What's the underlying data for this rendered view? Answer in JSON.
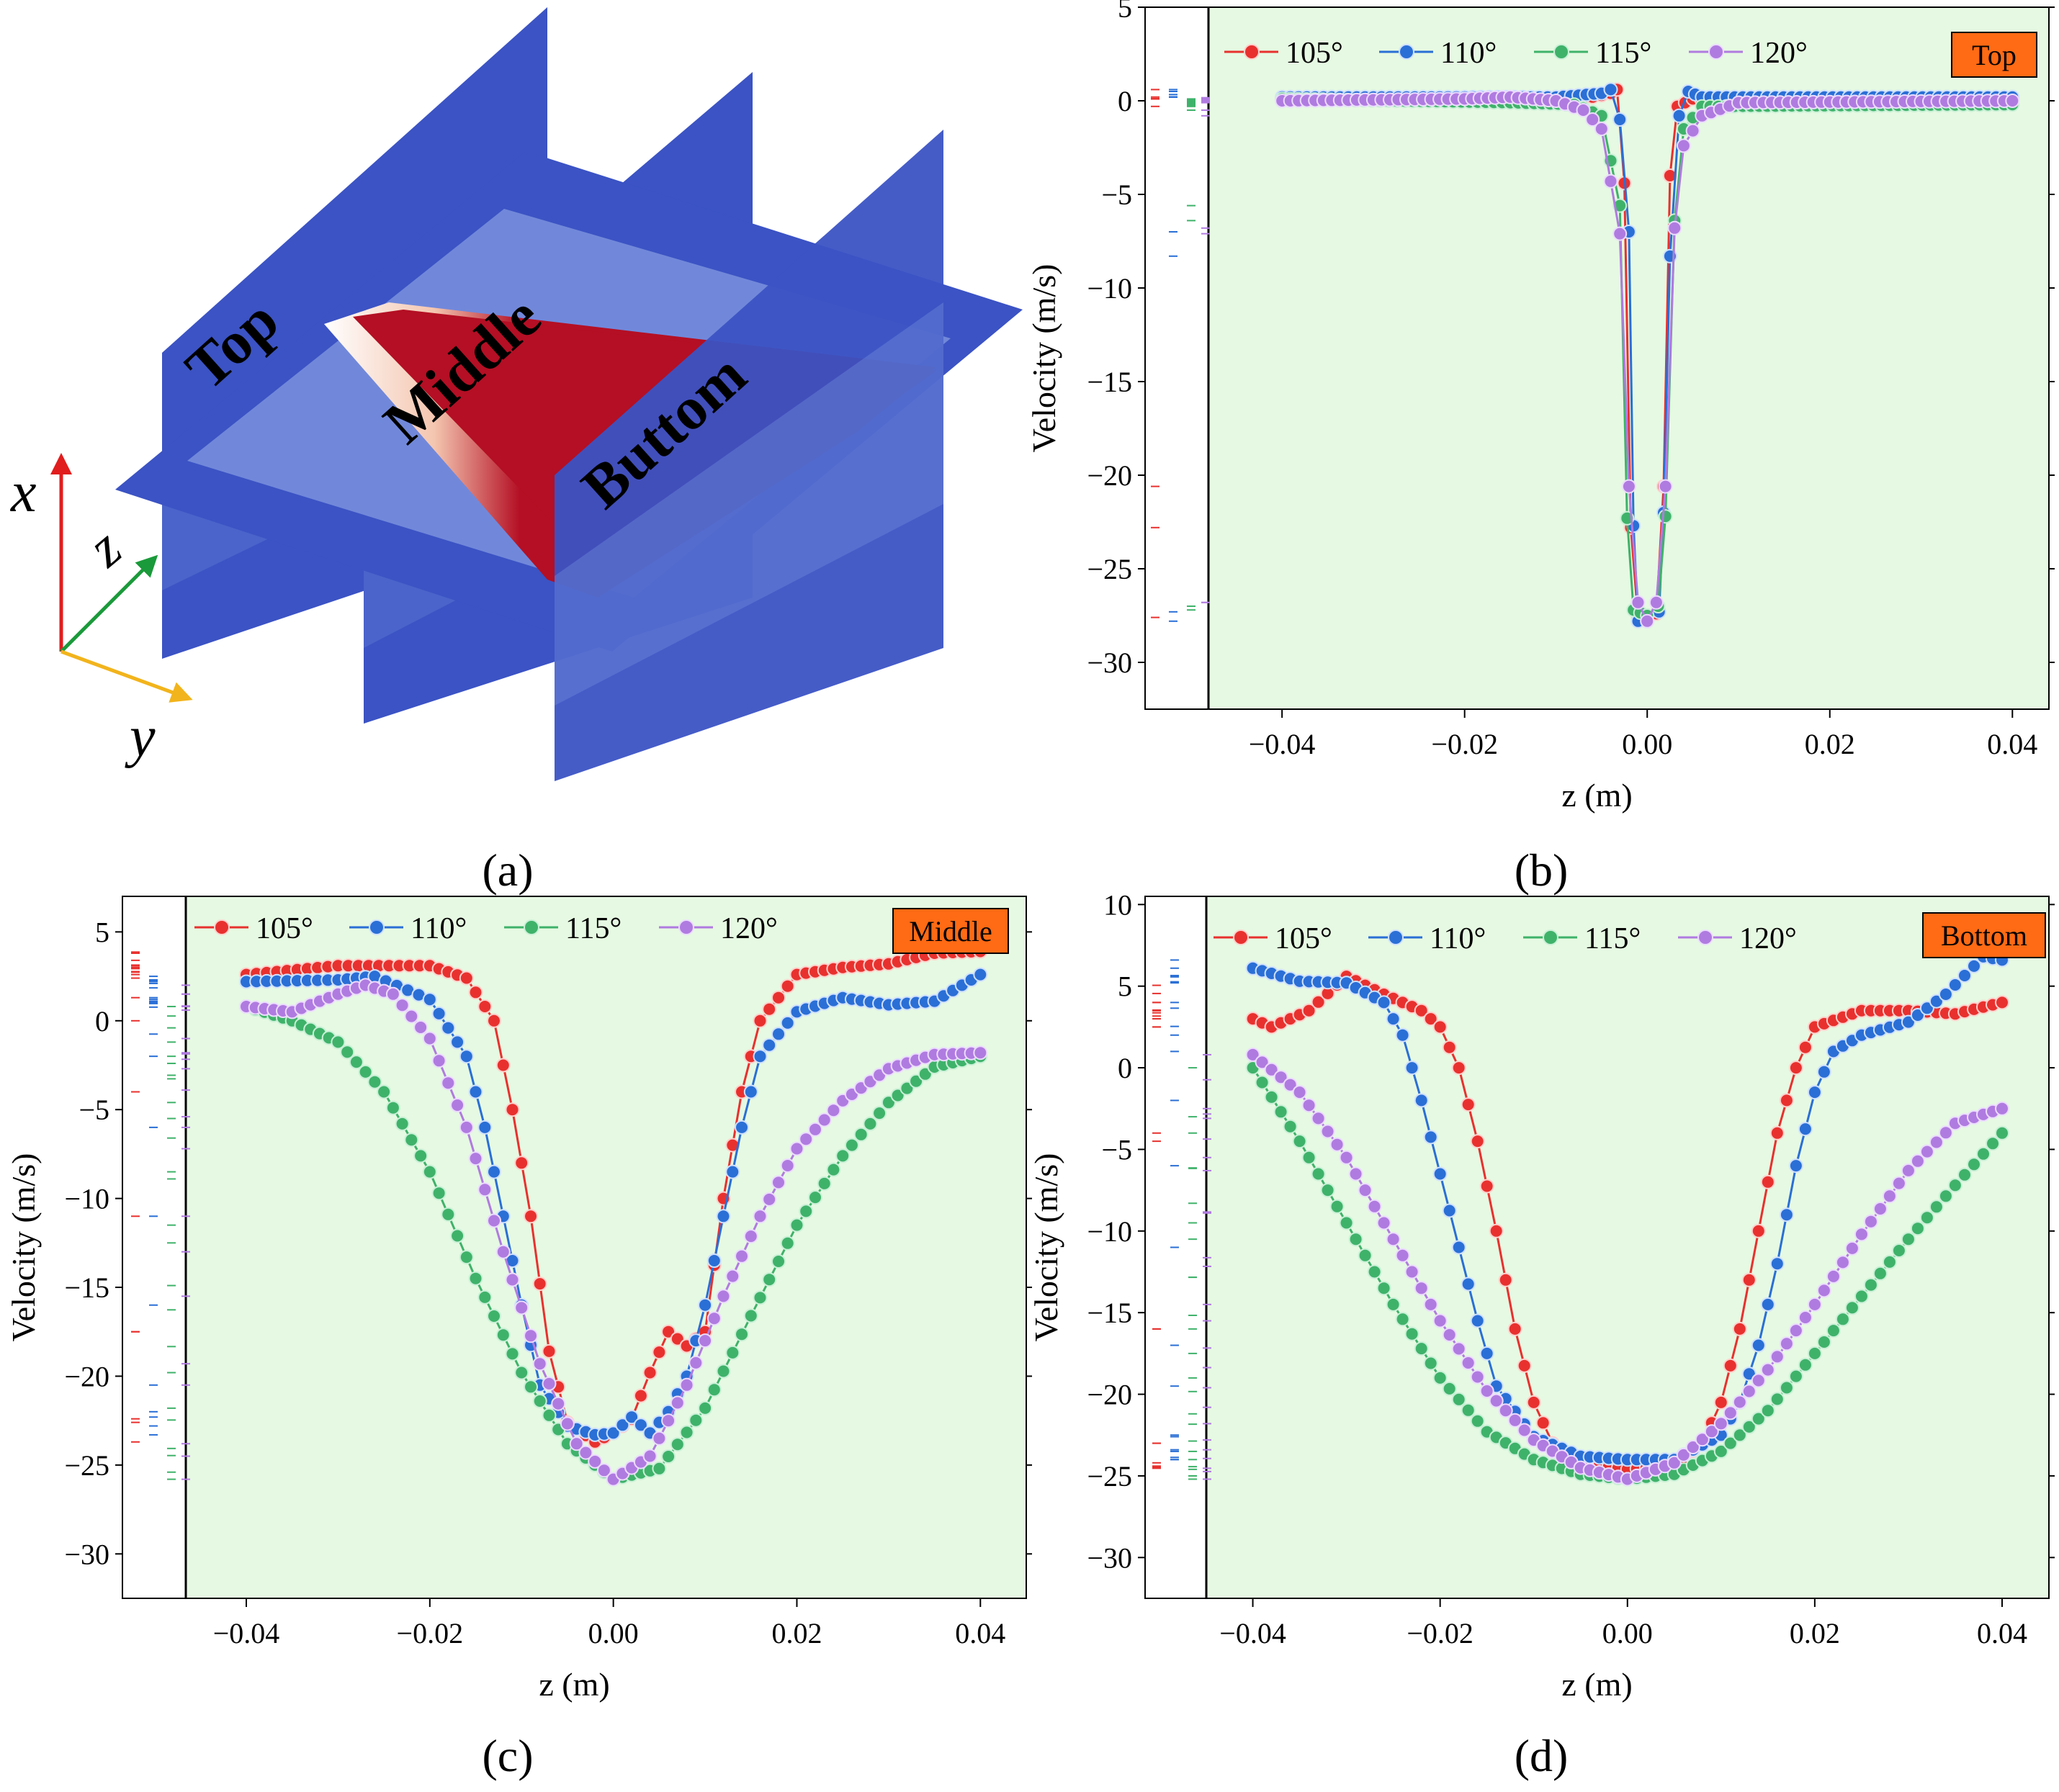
{
  "figure": {
    "panel_labels": [
      "(a)",
      "(b)",
      "(c)",
      "(d)"
    ],
    "scene": {
      "plane_labels": [
        "Top",
        "Middle",
        "Buttom"
      ],
      "axis_labels": [
        "x",
        "z",
        "y"
      ]
    },
    "colors": {
      "series_105": "#e8312e",
      "series_110": "#2a6fd6",
      "series_115": "#3fb26a",
      "series_120": "#b07be0",
      "plot_bg": "#e6f9e2",
      "tag_bg": "#ff6a14",
      "field_blue": "#3b53c4",
      "field_red": "#b40f24"
    }
  },
  "chart_data": [
    {
      "id": "b",
      "type": "line",
      "tag": "Top",
      "xlabel": "z (m)",
      "ylabel": "Velocity (m/s)",
      "xlim": [
        -0.055,
        0.044
      ],
      "ylim": [
        -32.5,
        5
      ],
      "xticks": [
        "-0.04",
        "-0.02",
        "0.00",
        "0.02",
        "0.04"
      ],
      "yticks": [
        "5",
        "0",
        "-5",
        "-10",
        "-15",
        "-20",
        "-25",
        "-30"
      ],
      "legend": [
        "105°",
        "110°",
        "115°",
        "120°"
      ],
      "series": [
        {
          "name": "105°",
          "points": [
            [
              -0.04,
              0.1
            ],
            [
              -0.01,
              0.1
            ],
            [
              -0.006,
              0.2
            ],
            [
              -0.004,
              0.4
            ],
            [
              -0.0033,
              0.6
            ],
            [
              -0.0025,
              -4.4
            ],
            [
              -0.0018,
              -22.8
            ],
            [
              -0.001,
              -27.6
            ],
            [
              0,
              -27.6
            ],
            [
              0.001,
              -27.4
            ],
            [
              0.0018,
              -20.6
            ],
            [
              0.0025,
              -4
            ],
            [
              0.0033,
              -0.3
            ],
            [
              0.005,
              0.1
            ],
            [
              0.04,
              0.1
            ]
          ]
        },
        {
          "name": "110°",
          "points": [
            [
              -0.04,
              0.2
            ],
            [
              -0.01,
              0.2
            ],
            [
              -0.005,
              0.4
            ],
            [
              -0.004,
              0.6
            ],
            [
              -0.003,
              -1
            ],
            [
              -0.002,
              -7
            ],
            [
              -0.0015,
              -22.7
            ],
            [
              -0.001,
              -27.8
            ],
            [
              0,
              -27.8
            ],
            [
              0.0013,
              -27.3
            ],
            [
              0.0018,
              -22
            ],
            [
              0.0025,
              -8.3
            ],
            [
              0.0035,
              -0.8
            ],
            [
              0.0045,
              0.5
            ],
            [
              0.006,
              0.2
            ],
            [
              0.04,
              0.2
            ]
          ]
        },
        {
          "name": "115°",
          "points": [
            [
              -0.04,
              0.1
            ],
            [
              -0.015,
              -0.1
            ],
            [
              -0.008,
              -0.2
            ],
            [
              -0.005,
              -0.8
            ],
            [
              -0.003,
              -5.6
            ],
            [
              -0.0022,
              -22.3
            ],
            [
              -0.0015,
              -27.2
            ],
            [
              0,
              -27.5
            ],
            [
              0.0012,
              -27
            ],
            [
              0.002,
              -22.2
            ],
            [
              0.003,
              -6.4
            ],
            [
              0.004,
              -1.5
            ],
            [
              0.006,
              -0.3
            ],
            [
              0.04,
              -0.2
            ]
          ]
        },
        {
          "name": "120°",
          "points": [
            [
              -0.04,
              0
            ],
            [
              -0.02,
              0.1
            ],
            [
              -0.015,
              0.2
            ],
            [
              -0.01,
              0
            ],
            [
              -0.007,
              -0.5
            ],
            [
              -0.005,
              -1.5
            ],
            [
              -0.003,
              -7.1
            ],
            [
              -0.002,
              -20.6
            ],
            [
              -0.001,
              -26.8
            ],
            [
              0,
              -27.8
            ],
            [
              0.001,
              -26.8
            ],
            [
              0.002,
              -20.6
            ],
            [
              0.003,
              -6.8
            ],
            [
              0.004,
              -2.4
            ],
            [
              0.006,
              -0.8
            ],
            [
              0.01,
              -0.1
            ],
            [
              0.04,
              0
            ]
          ]
        }
      ]
    },
    {
      "id": "c",
      "type": "line",
      "tag": "Middle",
      "xlabel": "z (m)",
      "ylabel": "Velocity (m/s)",
      "xlim": [
        -0.0535,
        0.045
      ],
      "ylim": [
        -32.5,
        7
      ],
      "xticks": [
        "-0.04",
        "-0.02",
        "0.00",
        "0.02",
        "0.04"
      ],
      "yticks": [
        "5",
        "0",
        "-5",
        "-10",
        "-15",
        "-20",
        "-25",
        "-30"
      ],
      "legend": [
        "105°",
        "110°",
        "115°",
        "120°"
      ],
      "series": [
        {
          "name": "105°",
          "points": [
            [
              -0.04,
              2.6
            ],
            [
              -0.03,
              3.1
            ],
            [
              -0.02,
              3.1
            ],
            [
              -0.016,
              2.4
            ],
            [
              -0.013,
              0
            ],
            [
              -0.011,
              -5
            ],
            [
              -0.009,
              -11
            ],
            [
              -0.007,
              -18.6
            ],
            [
              -0.005,
              -22.6
            ],
            [
              -0.002,
              -23.7
            ],
            [
              0,
              -23.2
            ],
            [
              0.002,
              -22.4
            ],
            [
              0.004,
              -19.8
            ],
            [
              0.006,
              -17.5
            ],
            [
              0.008,
              -18.3
            ],
            [
              0.01,
              -17.5
            ],
            [
              0.012,
              -10
            ],
            [
              0.014,
              -4
            ],
            [
              0.016,
              0
            ],
            [
              0.02,
              2.6
            ],
            [
              0.025,
              3
            ],
            [
              0.03,
              3.2
            ],
            [
              0.035,
              3.8
            ],
            [
              0.04,
              3.9
            ]
          ]
        },
        {
          "name": "110°",
          "points": [
            [
              -0.04,
              2.2
            ],
            [
              -0.03,
              2.3
            ],
            [
              -0.026,
              2.5
            ],
            [
              -0.02,
              1.2
            ],
            [
              -0.016,
              -2
            ],
            [
              -0.014,
              -6
            ],
            [
              -0.012,
              -11
            ],
            [
              -0.01,
              -16
            ],
            [
              -0.008,
              -20.5
            ],
            [
              -0.005,
              -22.8
            ],
            [
              -0.002,
              -23.3
            ],
            [
              0,
              -23.2
            ],
            [
              0.002,
              -22.3
            ],
            [
              0.004,
              -23.2
            ],
            [
              0.006,
              -22
            ],
            [
              0.008,
              -20
            ],
            [
              0.01,
              -16
            ],
            [
              0.012,
              -11
            ],
            [
              0.014,
              -6
            ],
            [
              0.016,
              -2
            ],
            [
              0.02,
              0.5
            ],
            [
              0.025,
              1.3
            ],
            [
              0.03,
              0.9
            ],
            [
              0.035,
              1.1
            ],
            [
              0.04,
              2.6
            ]
          ]
        },
        {
          "name": "115°",
          "points": [
            [
              -0.04,
              0.8
            ],
            [
              -0.035,
              0
            ],
            [
              -0.03,
              -1.2
            ],
            [
              -0.025,
              -4
            ],
            [
              -0.02,
              -8.5
            ],
            [
              -0.015,
              -14.5
            ],
            [
              -0.01,
              -19.8
            ],
            [
              -0.005,
              -23.8
            ],
            [
              0,
              -25.8
            ],
            [
              0.005,
              -25.2
            ],
            [
              0.01,
              -21.8
            ],
            [
              0.015,
              -16.6
            ],
            [
              0.02,
              -11.5
            ],
            [
              0.025,
              -7.6
            ],
            [
              0.03,
              -4.6
            ],
            [
              0.035,
              -2.6
            ],
            [
              0.04,
              -2
            ]
          ]
        },
        {
          "name": "120°",
          "points": [
            [
              -0.04,
              0.8
            ],
            [
              -0.035,
              0.5
            ],
            [
              -0.03,
              1.5
            ],
            [
              -0.027,
              2
            ],
            [
              -0.024,
              1.5
            ],
            [
              -0.02,
              -1
            ],
            [
              -0.016,
              -6
            ],
            [
              -0.012,
              -13
            ],
            [
              -0.008,
              -19.3
            ],
            [
              -0.004,
              -23.8
            ],
            [
              0,
              -25.8
            ],
            [
              0.004,
              -24.5
            ],
            [
              0.008,
              -20.5
            ],
            [
              0.012,
              -15.5
            ],
            [
              0.016,
              -11
            ],
            [
              0.02,
              -7.2
            ],
            [
              0.025,
              -4.5
            ],
            [
              0.03,
              -2.7
            ],
            [
              0.035,
              -1.9
            ],
            [
              0.04,
              -1.8
            ]
          ]
        }
      ]
    },
    {
      "id": "d",
      "type": "line",
      "tag": "Bottom",
      "xlabel": "z (m)",
      "ylabel": "Velocity (m/s)",
      "xlim": [
        -0.0515,
        0.045
      ],
      "ylim": [
        -32.5,
        10.5
      ],
      "xticks": [
        "-0.04",
        "-0.02",
        "0.00",
        "0.02",
        "0.04"
      ],
      "yticks": [
        "10",
        "5",
        "0",
        "-5",
        "-10",
        "-15",
        "-20",
        "-25",
        "-30"
      ],
      "legend": [
        "105°",
        "110°",
        "115°",
        "120°"
      ],
      "series": [
        {
          "name": "105°",
          "points": [
            [
              -0.04,
              3
            ],
            [
              -0.038,
              2.5
            ],
            [
              -0.034,
              3.5
            ],
            [
              -0.03,
              5.6
            ],
            [
              -0.026,
              4.5
            ],
            [
              -0.022,
              3.5
            ],
            [
              -0.02,
              2.5
            ],
            [
              -0.018,
              0
            ],
            [
              -0.016,
              -4.5
            ],
            [
              -0.014,
              -10
            ],
            [
              -0.012,
              -16
            ],
            [
              -0.01,
              -20.5
            ],
            [
              -0.008,
              -23
            ],
            [
              -0.005,
              -24.2
            ],
            [
              0,
              -24.6
            ],
            [
              0.005,
              -24.4
            ],
            [
              0.008,
              -23
            ],
            [
              0.01,
              -20.5
            ],
            [
              0.012,
              -16
            ],
            [
              0.014,
              -10
            ],
            [
              0.016,
              -4
            ],
            [
              0.018,
              0
            ],
            [
              0.02,
              2.5
            ],
            [
              0.025,
              3.5
            ],
            [
              0.03,
              3.5
            ],
            [
              0.035,
              3.3
            ],
            [
              0.04,
              4
            ]
          ]
        },
        {
          "name": "110°",
          "points": [
            [
              -0.04,
              6.1
            ],
            [
              -0.035,
              5.3
            ],
            [
              -0.03,
              5.2
            ],
            [
              -0.026,
              4
            ],
            [
              -0.024,
              2
            ],
            [
              -0.022,
              -2
            ],
            [
              -0.02,
              -6.5
            ],
            [
              -0.018,
              -11
            ],
            [
              -0.016,
              -15.5
            ],
            [
              -0.014,
              -19.5
            ],
            [
              -0.01,
              -22.6
            ],
            [
              -0.005,
              -23.8
            ],
            [
              0,
              -24
            ],
            [
              0.005,
              -24
            ],
            [
              0.01,
              -22.5
            ],
            [
              0.012,
              -20.5
            ],
            [
              0.014,
              -17
            ],
            [
              0.016,
              -12
            ],
            [
              0.018,
              -6
            ],
            [
              0.02,
              -1.5
            ],
            [
              0.022,
              1
            ],
            [
              0.025,
              2
            ],
            [
              0.03,
              2.8
            ],
            [
              0.034,
              4.5
            ],
            [
              0.038,
              6.8
            ],
            [
              0.04,
              6.6
            ]
          ]
        },
        {
          "name": "115°",
          "points": [
            [
              -0.04,
              0
            ],
            [
              -0.035,
              -4.5
            ],
            [
              -0.03,
              -9.5
            ],
            [
              -0.025,
              -14.5
            ],
            [
              -0.02,
              -19
            ],
            [
              -0.015,
              -22.3
            ],
            [
              -0.01,
              -24
            ],
            [
              -0.005,
              -24.9
            ],
            [
              0,
              -25.2
            ],
            [
              0.005,
              -24.9
            ],
            [
              0.01,
              -23.5
            ],
            [
              0.015,
              -21
            ],
            [
              0.02,
              -17.5
            ],
            [
              0.025,
              -14
            ],
            [
              0.03,
              -10.5
            ],
            [
              0.035,
              -7.2
            ],
            [
              0.04,
              -4
            ]
          ]
        },
        {
          "name": "120°",
          "points": [
            [
              -0.04,
              0.8
            ],
            [
              -0.035,
              -1.5
            ],
            [
              -0.03,
              -5.5
            ],
            [
              -0.025,
              -10.5
            ],
            [
              -0.02,
              -15.5
            ],
            [
              -0.015,
              -19.8
            ],
            [
              -0.01,
              -22.8
            ],
            [
              -0.005,
              -24.5
            ],
            [
              0,
              -25.2
            ],
            [
              0.005,
              -24.2
            ],
            [
              0.01,
              -21.8
            ],
            [
              0.015,
              -18.5
            ],
            [
              0.02,
              -14.5
            ],
            [
              0.025,
              -10.2
            ],
            [
              0.03,
              -6.3
            ],
            [
              0.035,
              -3.4
            ],
            [
              0.04,
              -2.5
            ]
          ]
        }
      ]
    }
  ]
}
